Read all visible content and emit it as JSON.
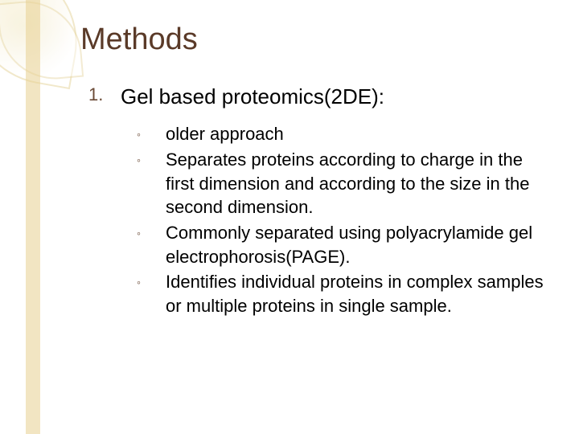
{
  "title": "Methods",
  "item": {
    "number": "1.",
    "text": "Gel based proteomics(2DE):"
  },
  "subs": [
    "older approach",
    "Separates proteins according to charge in the first dimension and according to the size in the second dimension.",
    "Commonly separated using polyacrylamide gel electrophorosis(PAGE).",
    "Identifies individual proteins in complex samples or multiple proteins in single sample."
  ],
  "colors": {
    "title": "#5a3a28",
    "accent": "#6a4a36",
    "stripe": "#e8cf8f",
    "leaf_border": "#e8d9a8"
  }
}
